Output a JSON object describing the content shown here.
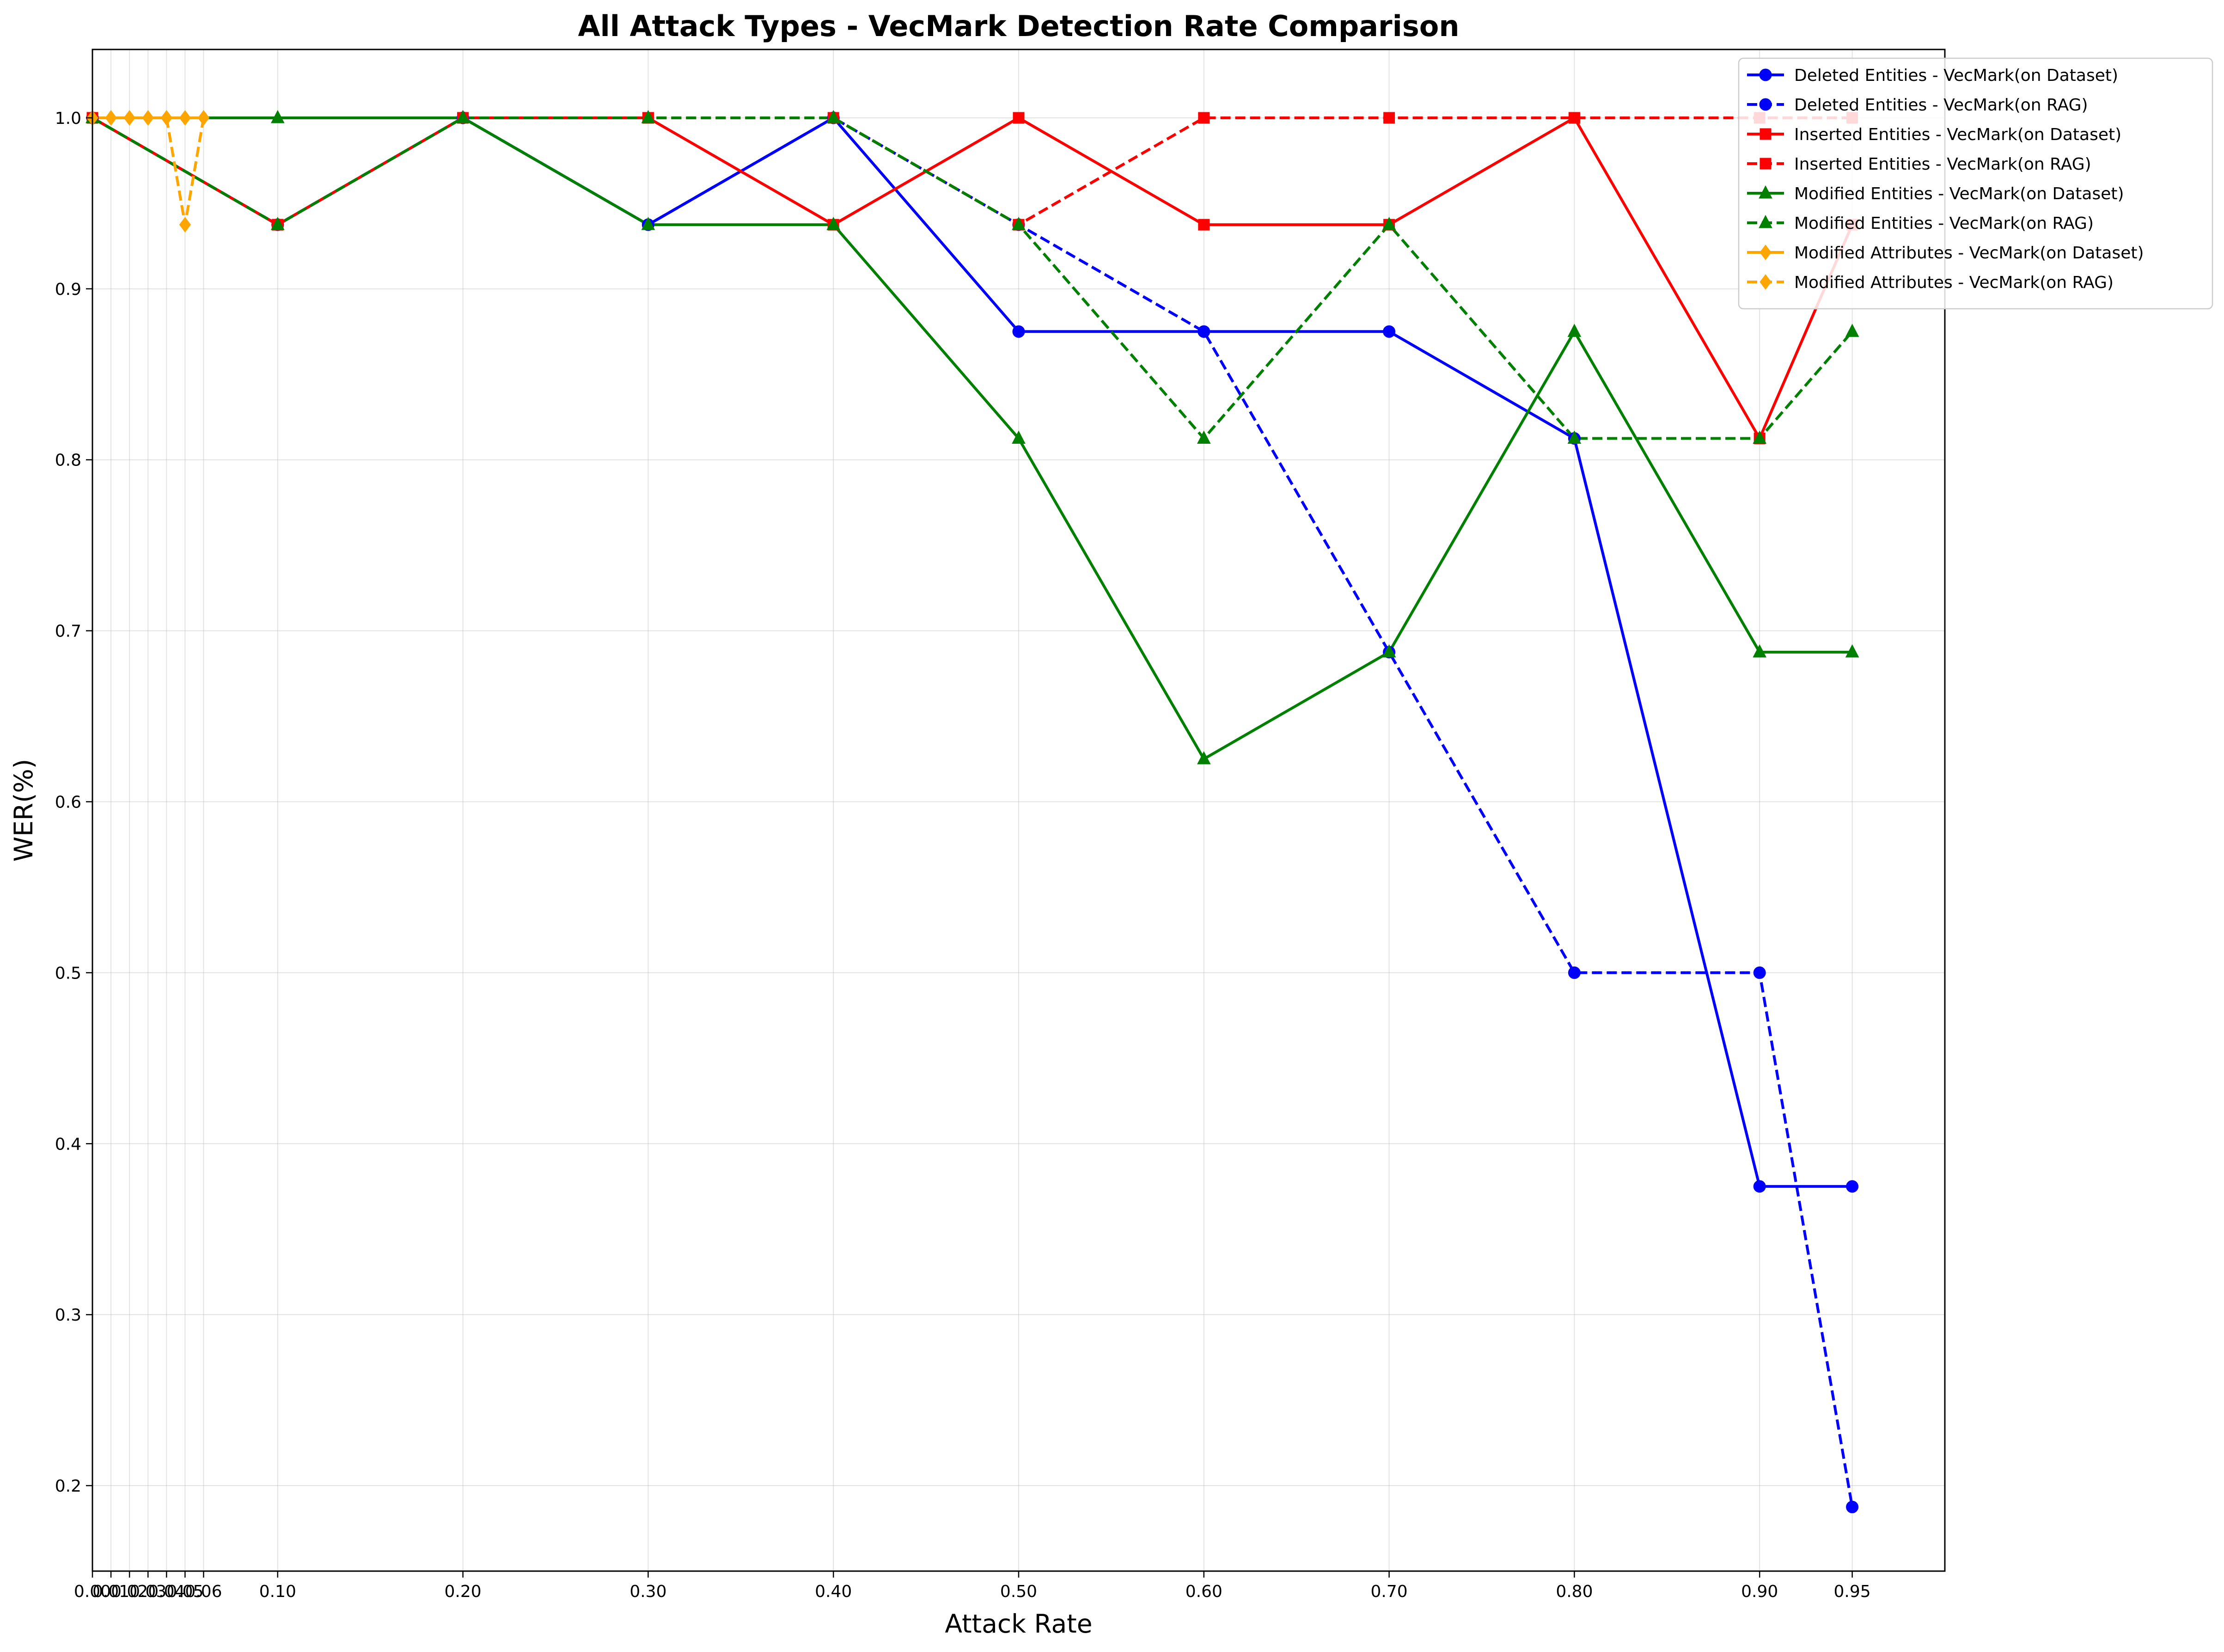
{
  "chart_data": {
    "type": "line",
    "title": "All Attack Types - VecMark Detection Rate Comparison",
    "xlabel": "Attack Rate",
    "ylabel": "WER(%)",
    "xlim": [
      0.0,
      1.0
    ],
    "ylim": [
      0.15,
      1.04
    ],
    "grid": true,
    "legend_position": "top-right",
    "x_ticks": [
      {
        "value": 0.0,
        "label": "0.00"
      },
      {
        "value": 0.01,
        "label": "0.01"
      },
      {
        "value": 0.02,
        "label": "0.02"
      },
      {
        "value": 0.03,
        "label": "0.03"
      },
      {
        "value": 0.04,
        "label": "0.04"
      },
      {
        "value": 0.05,
        "label": "0.05"
      },
      {
        "value": 0.06,
        "label": "0.06"
      },
      {
        "value": 0.1,
        "label": "0.10"
      },
      {
        "value": 0.2,
        "label": "0.20"
      },
      {
        "value": 0.3,
        "label": "0.30"
      },
      {
        "value": 0.4,
        "label": "0.40"
      },
      {
        "value": 0.5,
        "label": "0.50"
      },
      {
        "value": 0.6,
        "label": "0.60"
      },
      {
        "value": 0.7,
        "label": "0.70"
      },
      {
        "value": 0.8,
        "label": "0.80"
      },
      {
        "value": 0.9,
        "label": "0.90"
      },
      {
        "value": 0.95,
        "label": "0.95"
      }
    ],
    "y_ticks": [
      {
        "value": 0.2,
        "label": "0.2"
      },
      {
        "value": 0.3,
        "label": "0.3"
      },
      {
        "value": 0.4,
        "label": "0.4"
      },
      {
        "value": 0.5,
        "label": "0.5"
      },
      {
        "value": 0.6,
        "label": "0.6"
      },
      {
        "value": 0.7,
        "label": "0.7"
      },
      {
        "value": 0.8,
        "label": "0.8"
      },
      {
        "value": 0.9,
        "label": "0.9"
      },
      {
        "value": 1.0,
        "label": "1.0"
      }
    ],
    "series": [
      {
        "name": "Deleted Entities - VecMark(on Dataset)",
        "color": "#0000ff",
        "dash": "solid",
        "marker": "circle",
        "x": [
          0.0,
          0.1,
          0.2,
          0.3,
          0.4,
          0.5,
          0.6,
          0.7,
          0.8,
          0.9,
          0.95
        ],
        "y": [
          1.0,
          0.9375,
          1.0,
          0.9375,
          1.0,
          0.875,
          0.875,
          0.875,
          0.8125,
          0.375,
          0.375
        ]
      },
      {
        "name": "Deleted Entities - VecMark(on RAG)",
        "color": "#0000ff",
        "dash": "dashed",
        "marker": "circle",
        "x": [
          0.0,
          0.1,
          0.2,
          0.3,
          0.4,
          0.5,
          0.6,
          0.7,
          0.8,
          0.9,
          0.95
        ],
        "y": [
          1.0,
          0.9375,
          1.0,
          0.9375,
          1.0,
          0.9375,
          0.875,
          0.6875,
          0.5,
          0.5,
          0.1875
        ]
      },
      {
        "name": "Inserted Entities - VecMark(on Dataset)",
        "color": "#ff0000",
        "dash": "solid",
        "marker": "square",
        "x": [
          0.0,
          0.1,
          0.2,
          0.3,
          0.4,
          0.5,
          0.6,
          0.7,
          0.8,
          0.9,
          0.95
        ],
        "y": [
          1.0,
          0.9375,
          1.0,
          1.0,
          0.9375,
          1.0,
          0.9375,
          0.9375,
          1.0,
          0.8125,
          0.9375
        ]
      },
      {
        "name": "Inserted Entities - VecMark(on RAG)",
        "color": "#ff0000",
        "dash": "dashed",
        "marker": "square",
        "x": [
          0.0,
          0.1,
          0.2,
          0.3,
          0.4,
          0.5,
          0.6,
          0.7,
          0.8,
          0.9,
          0.95
        ],
        "y": [
          1.0,
          0.9375,
          1.0,
          1.0,
          1.0,
          0.9375,
          1.0,
          1.0,
          1.0,
          1.0,
          1.0
        ]
      },
      {
        "name": "Modified Entities - VecMark(on Dataset)",
        "color": "#008000",
        "dash": "solid",
        "marker": "triangle",
        "x": [
          0.0,
          0.1,
          0.2,
          0.3,
          0.4,
          0.5,
          0.6,
          0.7,
          0.8,
          0.9,
          0.95
        ],
        "y": [
          1.0,
          1.0,
          1.0,
          0.9375,
          0.9375,
          0.8125,
          0.625,
          0.6875,
          0.875,
          0.6875,
          0.6875
        ]
      },
      {
        "name": "Modified Entities - VecMark(on RAG)",
        "color": "#008000",
        "dash": "dashed",
        "marker": "triangle",
        "x": [
          0.0,
          0.1,
          0.2,
          0.3,
          0.4,
          0.5,
          0.6,
          0.7,
          0.8,
          0.9,
          0.95
        ],
        "y": [
          1.0,
          0.9375,
          1.0,
          1.0,
          1.0,
          0.9375,
          0.8125,
          0.9375,
          0.8125,
          0.8125,
          0.875
        ]
      },
      {
        "name": "Modified Attributes - VecMark(on Dataset)",
        "color": "#ffa500",
        "dash": "solid",
        "marker": "diamond",
        "x": [
          0.0,
          0.01,
          0.02,
          0.03,
          0.04,
          0.05,
          0.06
        ],
        "y": [
          1.0,
          1.0,
          1.0,
          1.0,
          1.0,
          1.0,
          1.0
        ]
      },
      {
        "name": "Modified Attributes - VecMark(on RAG)",
        "color": "#ffa500",
        "dash": "dashed",
        "marker": "diamond",
        "x": [
          0.0,
          0.01,
          0.02,
          0.03,
          0.04,
          0.05,
          0.06
        ],
        "y": [
          1.0,
          1.0,
          1.0,
          1.0,
          1.0,
          0.9375,
          1.0
        ]
      }
    ]
  }
}
